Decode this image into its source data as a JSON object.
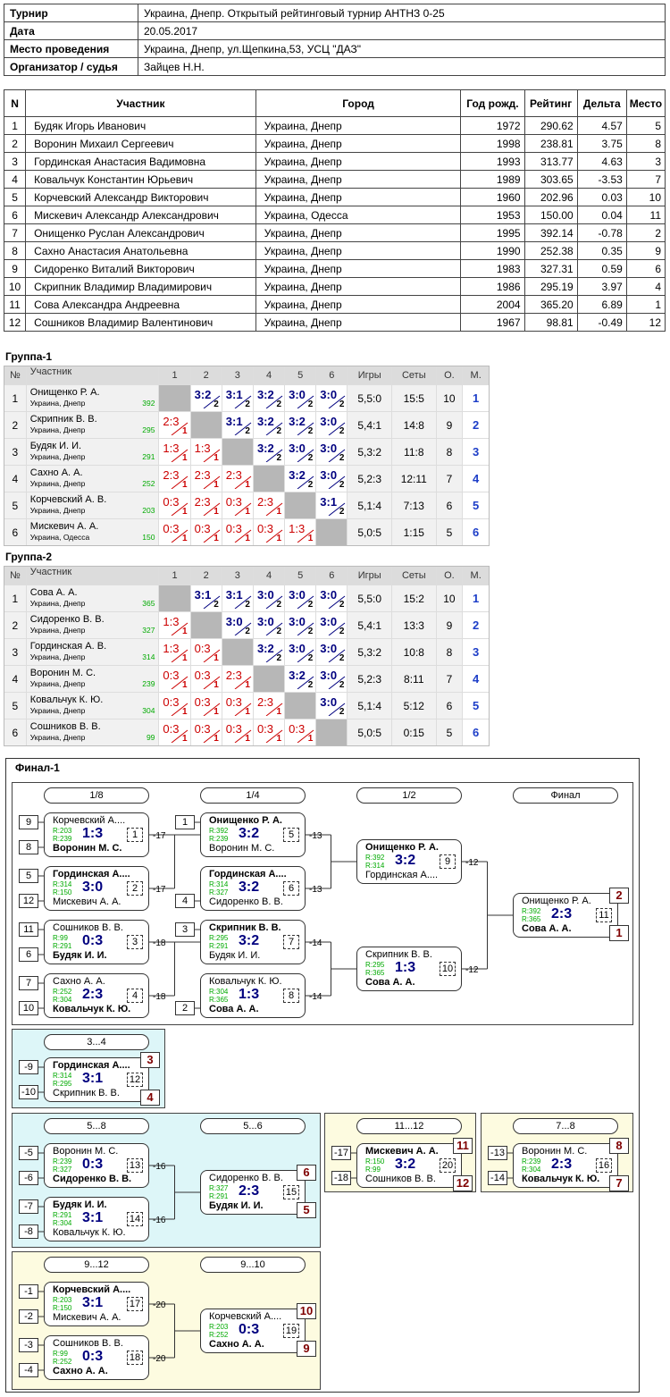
{
  "info": {
    "rows": [
      {
        "k": "Турнир",
        "v": "Украина, Днепр. Открытый рейтинговый турнир АНТНЗ 0-25"
      },
      {
        "k": "Дата",
        "v": "20.05.2017"
      },
      {
        "k": "Место проведения",
        "v": "Украина, Днепр, ул.Щепкина,53, УСЦ \"ДАЗ\""
      },
      {
        "k": "Организатор / судья",
        "v": "Зайцев Н.Н."
      }
    ]
  },
  "players": {
    "headers": [
      "N",
      "Участник",
      "Город",
      "Год рожд.",
      "Рейтинг",
      "Дельта",
      "Место"
    ],
    "rows": [
      [
        "1",
        "Будяк Игорь Иванович",
        "Украина, Днепр",
        "1972",
        "290.62",
        "4.57",
        "5"
      ],
      [
        "2",
        "Воронин Михаил Сергеевич",
        "Украина, Днепр",
        "1998",
        "238.81",
        "3.75",
        "8"
      ],
      [
        "3",
        "Гординская Анастасия Вадимовна",
        "Украина, Днепр",
        "1993",
        "313.77",
        "4.63",
        "3"
      ],
      [
        "4",
        "Ковальчук Константин Юрьевич",
        "Украина, Днепр",
        "1989",
        "303.65",
        "-3.53",
        "7"
      ],
      [
        "5",
        "Корчевский Александр Викторович",
        "Украина, Днепр",
        "1960",
        "202.96",
        "0.03",
        "10"
      ],
      [
        "6",
        "Мискевич Александр Александрович",
        "Украина, Одесса",
        "1953",
        "150.00",
        "0.04",
        "11"
      ],
      [
        "7",
        "Онищенко Руслан Александрович",
        "Украина, Днепр",
        "1995",
        "392.14",
        "-0.78",
        "2"
      ],
      [
        "8",
        "Сахно Анастасия Анатольевна",
        "Украина, Днепр",
        "1990",
        "252.38",
        "0.35",
        "9"
      ],
      [
        "9",
        "Сидоренко Виталий Викторович",
        "Украина, Днепр",
        "1983",
        "327.31",
        "0.59",
        "6"
      ],
      [
        "10",
        "Скрипник Владимир Владимирович",
        "Украина, Днепр",
        "1986",
        "295.19",
        "3.97",
        "4"
      ],
      [
        "11",
        "Сова Александра Андреевна",
        "Украина, Днепр",
        "2004",
        "365.20",
        "6.89",
        "1"
      ],
      [
        "12",
        "Сошников Владимир Валентинович",
        "Украина, Днепр",
        "1967",
        "98.81",
        "-0.49",
        "12"
      ]
    ]
  },
  "groups": [
    {
      "title": "Группа-1",
      "headers": [
        "№",
        "Участник",
        "1",
        "2",
        "3",
        "4",
        "5",
        "6",
        "Игры",
        "Сеты",
        "О.",
        "М."
      ],
      "rows": [
        {
          "n": "1",
          "name": "Онищенко Р. А.",
          "city": "Украина, Днепр",
          "rating": "392",
          "cells": [
            null,
            [
              "3:2",
              "2",
              "w"
            ],
            [
              "3:1",
              "2",
              "w"
            ],
            [
              "3:2",
              "2",
              "w"
            ],
            [
              "3:0",
              "2",
              "w"
            ],
            [
              "3:0",
              "2",
              "w"
            ]
          ],
          "games": "5,5:0",
          "sets": "15:5",
          "pts": "10",
          "place": "1"
        },
        {
          "n": "2",
          "name": "Скрипник В. В.",
          "city": "Украина, Днепр",
          "rating": "295",
          "cells": [
            [
              "2:3",
              "1",
              "l"
            ],
            null,
            [
              "3:1",
              "2",
              "w"
            ],
            [
              "3:2",
              "2",
              "w"
            ],
            [
              "3:2",
              "2",
              "w"
            ],
            [
              "3:0",
              "2",
              "w"
            ]
          ],
          "games": "5,4:1",
          "sets": "14:8",
          "pts": "9",
          "place": "2"
        },
        {
          "n": "3",
          "name": "Будяк И. И.",
          "city": "Украина, Днепр",
          "rating": "291",
          "cells": [
            [
              "1:3",
              "1",
              "l"
            ],
            [
              "1:3",
              "1",
              "l"
            ],
            null,
            [
              "3:2",
              "2",
              "w"
            ],
            [
              "3:0",
              "2",
              "w"
            ],
            [
              "3:0",
              "2",
              "w"
            ]
          ],
          "games": "5,3:2",
          "sets": "11:8",
          "pts": "8",
          "place": "3"
        },
        {
          "n": "4",
          "name": "Сахно А. А.",
          "city": "Украина, Днепр",
          "rating": "252",
          "cells": [
            [
              "2:3",
              "1",
              "l"
            ],
            [
              "2:3",
              "1",
              "l"
            ],
            [
              "2:3",
              "1",
              "l"
            ],
            null,
            [
              "3:2",
              "2",
              "w"
            ],
            [
              "3:0",
              "2",
              "w"
            ]
          ],
          "games": "5,2:3",
          "sets": "12:11",
          "pts": "7",
          "place": "4"
        },
        {
          "n": "5",
          "name": "Корчевский А. В.",
          "city": "Украина, Днепр",
          "rating": "203",
          "cells": [
            [
              "0:3",
              "1",
              "l"
            ],
            [
              "2:3",
              "1",
              "l"
            ],
            [
              "0:3",
              "1",
              "l"
            ],
            [
              "2:3",
              "1",
              "l"
            ],
            null,
            [
              "3:1",
              "2",
              "w"
            ]
          ],
          "games": "5,1:4",
          "sets": "7:13",
          "pts": "6",
          "place": "5"
        },
        {
          "n": "6",
          "name": "Мискевич А. А.",
          "city": "Украина, Одесса",
          "rating": "150",
          "cells": [
            [
              "0:3",
              "1",
              "l"
            ],
            [
              "0:3",
              "1",
              "l"
            ],
            [
              "0:3",
              "1",
              "l"
            ],
            [
              "0:3",
              "1",
              "l"
            ],
            [
              "1:3",
              "1",
              "l"
            ],
            null
          ],
          "games": "5,0:5",
          "sets": "1:15",
          "pts": "5",
          "place": "6"
        }
      ]
    },
    {
      "title": "Группа-2",
      "headers": [
        "№",
        "Участник",
        "1",
        "2",
        "3",
        "4",
        "5",
        "6",
        "Игры",
        "Сеты",
        "О.",
        "М."
      ],
      "rows": [
        {
          "n": "1",
          "name": "Сова А. А.",
          "city": "Украина, Днепр",
          "rating": "365",
          "cells": [
            null,
            [
              "3:1",
              "2",
              "w"
            ],
            [
              "3:1",
              "2",
              "w"
            ],
            [
              "3:0",
              "2",
              "w"
            ],
            [
              "3:0",
              "2",
              "w"
            ],
            [
              "3:0",
              "2",
              "w"
            ]
          ],
          "games": "5,5:0",
          "sets": "15:2",
          "pts": "10",
          "place": "1"
        },
        {
          "n": "2",
          "name": "Сидоренко В. В.",
          "city": "Украина, Днепр",
          "rating": "327",
          "cells": [
            [
              "1:3",
              "1",
              "l"
            ],
            null,
            [
              "3:0",
              "2",
              "w"
            ],
            [
              "3:0",
              "2",
              "w"
            ],
            [
              "3:0",
              "2",
              "w"
            ],
            [
              "3:0",
              "2",
              "w"
            ]
          ],
          "games": "5,4:1",
          "sets": "13:3",
          "pts": "9",
          "place": "2"
        },
        {
          "n": "3",
          "name": "Гординская А. В.",
          "city": "Украина, Днепр",
          "rating": "314",
          "cells": [
            [
              "1:3",
              "1",
              "l"
            ],
            [
              "0:3",
              "1",
              "l"
            ],
            null,
            [
              "3:2",
              "2",
              "w"
            ],
            [
              "3:0",
              "2",
              "w"
            ],
            [
              "3:0",
              "2",
              "w"
            ]
          ],
          "games": "5,3:2",
          "sets": "10:8",
          "pts": "8",
          "place": "3"
        },
        {
          "n": "4",
          "name": "Воронин М. С.",
          "city": "Украина, Днепр",
          "rating": "239",
          "cells": [
            [
              "0:3",
              "1",
              "l"
            ],
            [
              "0:3",
              "1",
              "l"
            ],
            [
              "2:3",
              "1",
              "l"
            ],
            null,
            [
              "3:2",
              "2",
              "w"
            ],
            [
              "3:0",
              "2",
              "w"
            ]
          ],
          "games": "5,2:3",
          "sets": "8:11",
          "pts": "7",
          "place": "4"
        },
        {
          "n": "5",
          "name": "Ковальчук К. Ю.",
          "city": "Украина, Днепр",
          "rating": "304",
          "cells": [
            [
              "0:3",
              "1",
              "l"
            ],
            [
              "0:3",
              "1",
              "l"
            ],
            [
              "0:3",
              "1",
              "l"
            ],
            [
              "2:3",
              "1",
              "l"
            ],
            null,
            [
              "3:0",
              "2",
              "w"
            ]
          ],
          "games": "5,1:4",
          "sets": "5:12",
          "pts": "6",
          "place": "5"
        },
        {
          "n": "6",
          "name": "Сошников В. В.",
          "city": "Украина, Днепр",
          "rating": "99",
          "cells": [
            [
              "0:3",
              "1",
              "l"
            ],
            [
              "0:3",
              "1",
              "l"
            ],
            [
              "0:3",
              "1",
              "l"
            ],
            [
              "0:3",
              "1",
              "l"
            ],
            [
              "0:3",
              "1",
              "l"
            ],
            null
          ],
          "games": "5,0:5",
          "sets": "0:15",
          "pts": "5",
          "place": "6"
        }
      ]
    }
  ],
  "bracket": {
    "title": "Финал-1",
    "rounds": [
      "1/8",
      "1/4",
      "1/2",
      "Финал",
      "3...4",
      "5...8",
      "5...6",
      "11...12",
      "7...8",
      "9...12",
      "9...10"
    ],
    "matches": [
      {
        "id": "m1",
        "p1": "Корчевский А....",
        "p2": "Воронин М. С.",
        "r1": "R:203",
        "r2": "R:239",
        "sc": "1:3",
        "no": "1",
        "b": 2,
        "s1": "9",
        "s2": "8",
        "out": "-17"
      },
      {
        "id": "m2",
        "p1": "Гординская А....",
        "p2": "Мискевич А. А.",
        "r1": "R:314",
        "r2": "R:150",
        "sc": "3:0",
        "no": "2",
        "b": 1,
        "s1": "5",
        "s2": "12",
        "out": "-17"
      },
      {
        "id": "m3",
        "p1": "Сошников В. В.",
        "p2": "Будяк И. И.",
        "r1": "R:99",
        "r2": "R:291",
        "sc": "0:3",
        "no": "3",
        "b": 2,
        "s1": "11",
        "s2": "6",
        "out": "-18"
      },
      {
        "id": "m4",
        "p1": "Сахно А. А.",
        "p2": "Ковальчук К. Ю.",
        "r1": "R:252",
        "r2": "R:304",
        "sc": "2:3",
        "no": "4",
        "b": 2,
        "s1": "7",
        "s2": "10",
        "out": "-18"
      },
      {
        "id": "m5",
        "p1": "Онищенко Р. А.",
        "p2": "Воронин М. С.",
        "r1": "R:392",
        "r2": "R:239",
        "sc": "3:2",
        "no": "5",
        "b": 1,
        "s1": "1",
        "out": "-13"
      },
      {
        "id": "m6",
        "p1": "Гординская А....",
        "p2": "Сидоренко В. В.",
        "r1": "R:314",
        "r2": "R:327",
        "sc": "3:2",
        "no": "6",
        "b": 1,
        "s2": "4",
        "out": "-13"
      },
      {
        "id": "m7",
        "p1": "Скрипник В. В.",
        "p2": "Будяк И. И.",
        "r1": "R:295",
        "r2": "R:291",
        "sc": "3:2",
        "no": "7",
        "b": 1,
        "s1": "3",
        "out": "-14"
      },
      {
        "id": "m8",
        "p1": "Ковальчук К. Ю.",
        "p2": "Сова А. А.",
        "r1": "R:304",
        "r2": "R:365",
        "sc": "1:3",
        "no": "8",
        "b": 2,
        "s2": "2",
        "out": "-14"
      },
      {
        "id": "m9",
        "p1": "Онищенко Р. А.",
        "p2": "Гординская А....",
        "r1": "R:392",
        "r2": "R:314",
        "sc": "3:2",
        "no": "9",
        "b": 1,
        "out": "-12"
      },
      {
        "id": "m10",
        "p1": "Скрипник В. В.",
        "p2": "Сова А. А.",
        "r1": "R:295",
        "r2": "R:365",
        "sc": "1:3",
        "no": "10",
        "b": 2,
        "out": "-12"
      },
      {
        "id": "m11",
        "p1": "Онищенко Р. А.",
        "p2": "Сова А. А.",
        "r1": "R:392",
        "r2": "R:365",
        "sc": "2:3",
        "no": "11",
        "b": 2,
        "f1": "2",
        "f2": "1"
      },
      {
        "id": "m12",
        "p1": "Гординская А....",
        "p2": "Скрипник В. В.",
        "r1": "R:314",
        "r2": "R:295",
        "sc": "3:1",
        "no": "12",
        "b": 1,
        "s1": "-9",
        "s2": "-10",
        "f1": "3",
        "f2": "4"
      },
      {
        "id": "m13",
        "p1": "Воронин М. С.",
        "p2": "Сидоренко В. В.",
        "r1": "R:239",
        "r2": "R:327",
        "sc": "0:3",
        "no": "13",
        "b": 2,
        "s1": "-5",
        "s2": "-6",
        "out": "-16"
      },
      {
        "id": "m14",
        "p1": "Будяк И. И.",
        "p2": "Ковальчук К. Ю.",
        "r1": "R:291",
        "r2": "R:304",
        "sc": "3:1",
        "no": "14",
        "b": 1,
        "s1": "-7",
        "s2": "-8",
        "out": "-16"
      },
      {
        "id": "m15",
        "p1": "Сидоренко В. В.",
        "p2": "Будяк И. И.",
        "r1": "R:327",
        "r2": "R:291",
        "sc": "2:3",
        "no": "15",
        "b": 2,
        "f1": "6",
        "f2": "5"
      },
      {
        "id": "m20",
        "p1": "Мискевич А. А.",
        "p2": "Сошников В. В.",
        "r1": "R:150",
        "r2": "R:99",
        "sc": "3:2",
        "no": "20",
        "b": 1,
        "s1": "-17",
        "s2": "-18",
        "f1": "11",
        "f2": "12"
      },
      {
        "id": "m16",
        "p1": "Воронин М. С.",
        "p2": "Ковальчук К. Ю.",
        "r1": "R:239",
        "r2": "R:304",
        "sc": "2:3",
        "no": "16",
        "b": 2,
        "s1": "-13",
        "s2": "-14",
        "f1": "8",
        "f2": "7"
      },
      {
        "id": "m17",
        "p1": "Корчевский А....",
        "p2": "Мискевич А. А.",
        "r1": "R:203",
        "r2": "R:150",
        "sc": "3:1",
        "no": "17",
        "b": 1,
        "s1": "-1",
        "s2": "-2",
        "out": "-20"
      },
      {
        "id": "m18",
        "p1": "Сошников В. В.",
        "p2": "Сахно А. А.",
        "r1": "R:99",
        "r2": "R:252",
        "sc": "0:3",
        "no": "18",
        "b": 2,
        "s1": "-3",
        "s2": "-4",
        "out": "-20"
      },
      {
        "id": "m19",
        "p1": "Корчевский А....",
        "p2": "Сахно А. А.",
        "r1": "R:203",
        "r2": "R:252",
        "sc": "0:3",
        "no": "19",
        "b": 2,
        "f1": "10",
        "f2": "9"
      }
    ]
  },
  "colors": {
    "win": "#00007f",
    "loss": "#cc0000",
    "rating": "#00aa00",
    "place": "#1d3ec8",
    "final_place": "#7f0000",
    "zone_blue": "#ddf6f8",
    "zone_yellow": "#fdfbe0"
  }
}
